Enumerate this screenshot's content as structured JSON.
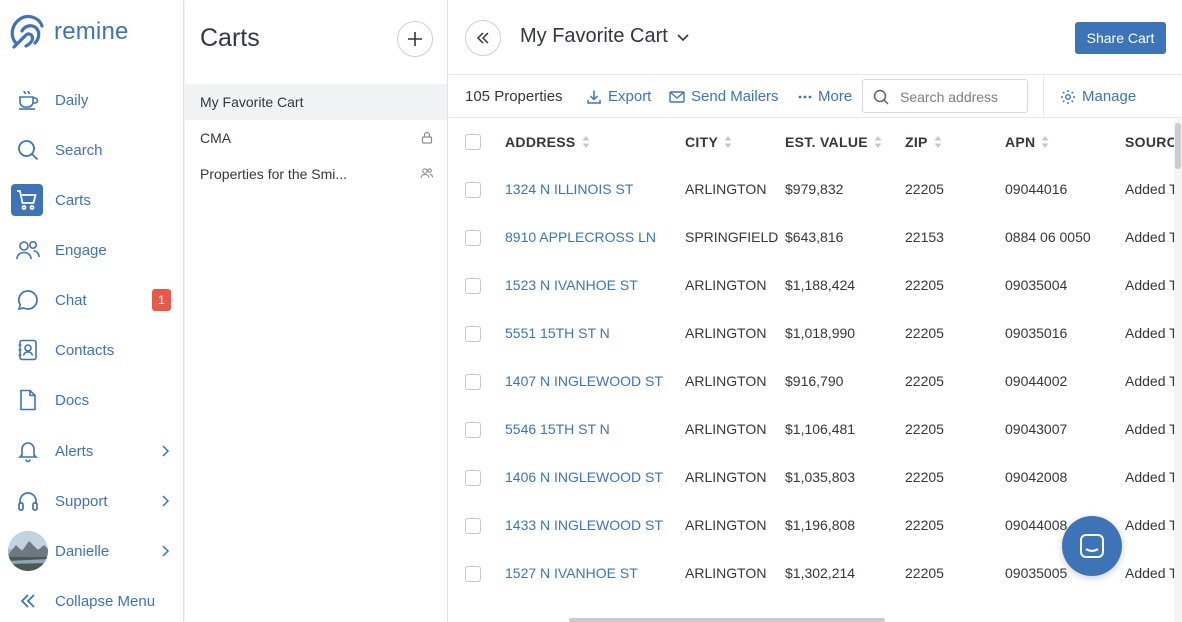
{
  "brand": {
    "name": "remine",
    "accent": "#3d74b8"
  },
  "nav": {
    "items": [
      {
        "label": "Daily",
        "icon": "coffee-cup-icon"
      },
      {
        "label": "Search",
        "icon": "search-icon"
      },
      {
        "label": "Carts",
        "icon": "cart-icon",
        "active": true
      },
      {
        "label": "Engage",
        "icon": "people-icon"
      },
      {
        "label": "Chat",
        "icon": "chat-bubble-icon",
        "badge": "1"
      },
      {
        "label": "Contacts",
        "icon": "contact-book-icon"
      },
      {
        "label": "Docs",
        "icon": "document-icon"
      },
      {
        "label": "Alerts",
        "icon": "bell-icon"
      },
      {
        "label": "Support",
        "icon": "headset-icon"
      },
      {
        "label": "Danielle",
        "icon": "avatar"
      }
    ],
    "collapse_label": "Collapse Menu"
  },
  "carts_panel": {
    "title": "Carts",
    "items": [
      {
        "label": "My Favorite Cart"
      },
      {
        "label": "CMA",
        "icon": "lock-icon"
      },
      {
        "label": "Properties for the Smi...",
        "icon": "shared-users-icon"
      }
    ]
  },
  "main": {
    "cart_title": "My Favorite Cart",
    "share_label": "Share Cart",
    "toolbar": {
      "count": "105 Properties",
      "export": "Export",
      "send_mailers": "Send Mailers",
      "more": "More",
      "search_placeholder": "Search address",
      "manage": "Manage"
    }
  },
  "table": {
    "columns": [
      "ADDRESS",
      "CITY",
      "EST. VALUE",
      "ZIP",
      "APN",
      "SOURCE"
    ],
    "rows": [
      {
        "address": "1324 N ILLINOIS ST",
        "city": "ARLINGTON",
        "value": "$979,832",
        "zip": "22205",
        "apn": "09044016",
        "source": "Added T"
      },
      {
        "address": "8910 APPLECROSS LN",
        "city": "SPRINGFIELD",
        "value": "$643,816",
        "zip": "22153",
        "apn": "0884 06 0050",
        "source": "Added T"
      },
      {
        "address": "1523 N IVANHOE ST",
        "city": "ARLINGTON",
        "value": "$1,188,424",
        "zip": "22205",
        "apn": "09035004",
        "source": "Added T"
      },
      {
        "address": "5551 15TH ST N",
        "city": "ARLINGTON",
        "value": "$1,018,990",
        "zip": "22205",
        "apn": "09035016",
        "source": "Added T"
      },
      {
        "address": "1407 N INGLEWOOD ST",
        "city": "ARLINGTON",
        "value": "$916,790",
        "zip": "22205",
        "apn": "09044002",
        "source": "Added T"
      },
      {
        "address": "5546 15TH ST N",
        "city": "ARLINGTON",
        "value": "$1,106,481",
        "zip": "22205",
        "apn": "09043007",
        "source": "Added T"
      },
      {
        "address": "1406 N INGLEWOOD ST",
        "city": "ARLINGTON",
        "value": "$1,035,803",
        "zip": "22205",
        "apn": "09042008",
        "source": "Added T"
      },
      {
        "address": "1433 N INGLEWOOD ST",
        "city": "ARLINGTON",
        "value": "$1,196,808",
        "zip": "22205",
        "apn": "09044008",
        "source": "Added T"
      },
      {
        "address": "1527 N IVANHOE ST",
        "city": "ARLINGTON",
        "value": "$1,302,214",
        "zip": "22205",
        "apn": "09035005",
        "source": "Added T"
      }
    ]
  }
}
